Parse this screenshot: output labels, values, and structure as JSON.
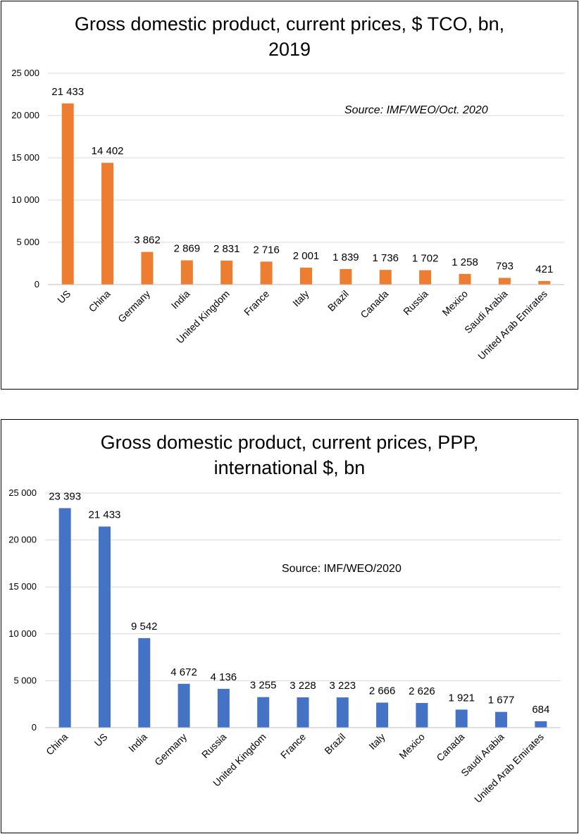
{
  "chart_data": [
    {
      "type": "bar",
      "title": "Gross domestic product, current prices, $ TCO, bn,\n2019",
      "annotation": "Source: IMF/WEO/Oct. 2020",
      "categories": [
        "US",
        "China",
        "Germany",
        "India",
        "United Kingdom",
        "France",
        "Italy",
        "Brazil",
        "Canada",
        "Russia",
        "Mexico",
        "Saudi Arabia",
        "United Arab Emirates"
      ],
      "values": [
        21433,
        14402,
        3862,
        2869,
        2831,
        2716,
        2001,
        1839,
        1736,
        1702,
        1258,
        793,
        421
      ],
      "data_labels": [
        "21 433",
        "14 402",
        "3 862",
        "2 869",
        "2 831",
        "2 716",
        "2 001",
        "1 839",
        "1 736",
        "1 702",
        "1 258",
        "793",
        "421"
      ],
      "yticks": [
        0,
        5000,
        10000,
        15000,
        20000,
        25000
      ],
      "ytick_labels": [
        "0",
        "5 000",
        "10 000",
        "15 000",
        "20 000",
        "25 000"
      ],
      "ylim": [
        0,
        25000
      ],
      "grid": true,
      "legend": false,
      "color": "#ED7D31"
    },
    {
      "type": "bar",
      "title": "Gross domestic product, current prices, PPP,\ninternational $, bn",
      "annotation": "Source: IMF/WEO/2020",
      "categories": [
        "China",
        "US",
        "India",
        "Germany",
        "Russia",
        "United Kingdom",
        "France",
        "Brazil",
        "Italy",
        "Mexico",
        "Canada",
        "Saudi Arabia",
        "United Arab Emirates"
      ],
      "values": [
        23393,
        21433,
        9542,
        4672,
        4136,
        3255,
        3228,
        3223,
        2666,
        2626,
        1921,
        1677,
        684
      ],
      "data_labels": [
        "23 393",
        "21 433",
        "9 542",
        "4 672",
        "4 136",
        "3 255",
        "3 228",
        "3 223",
        "2 666",
        "2 626",
        "1 921",
        "1 677",
        "684"
      ],
      "yticks": [
        0,
        5000,
        10000,
        15000,
        20000,
        25000
      ],
      "ytick_labels": [
        "0",
        "5 000",
        "10 000",
        "15 000",
        "20 000",
        "25 000"
      ],
      "ylim": [
        0,
        25000
      ],
      "grid": true,
      "legend": false,
      "color": "#4472C4"
    }
  ]
}
